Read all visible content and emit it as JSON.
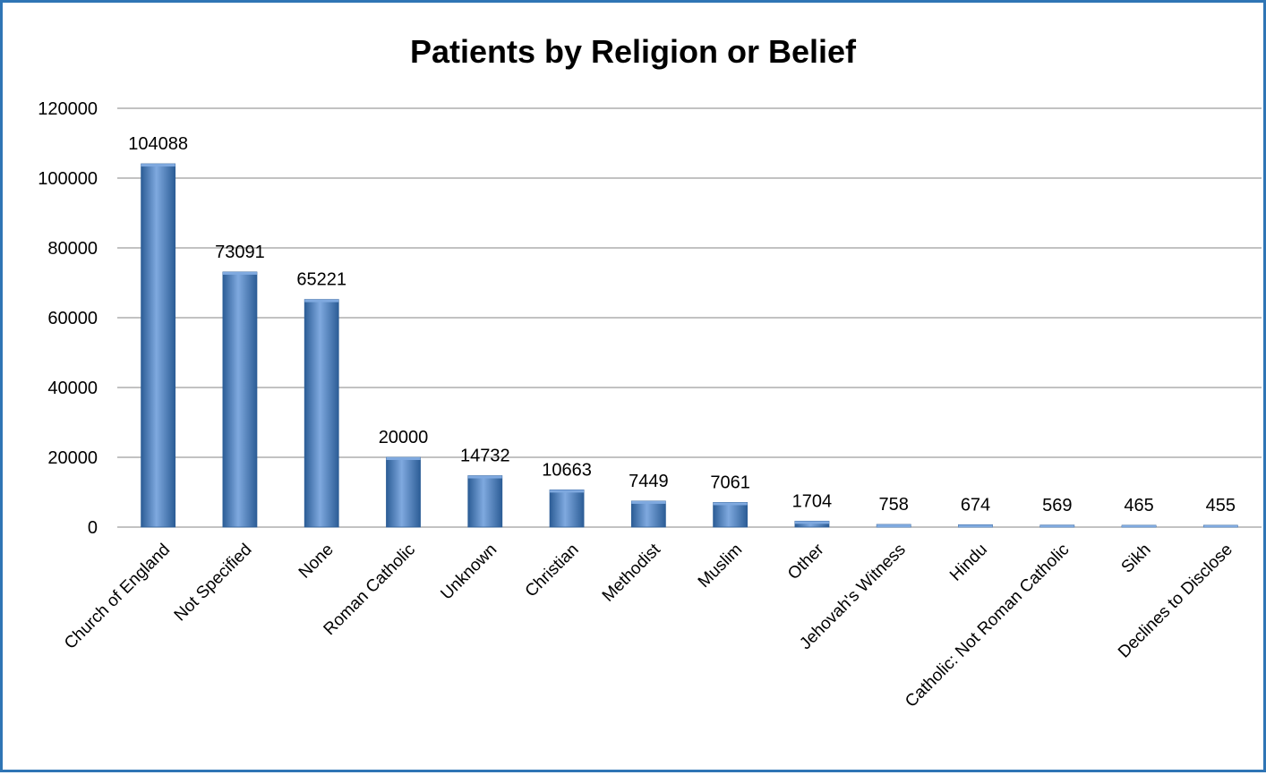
{
  "chart_data": {
    "type": "bar",
    "title": "Patients by Religion or Belief",
    "xlabel": "",
    "ylabel": "",
    "categories": [
      "Church of England",
      "Not Specified",
      "None",
      "Roman Catholic",
      "Unknown",
      "Christian",
      "Methodist",
      "Muslim",
      "Other",
      "Jehovah's Witness",
      "Hindu",
      "Catholic: Not Roman Catholic",
      "Sikh",
      "Declines to Disclose"
    ],
    "values": [
      104088,
      73091,
      65221,
      20000,
      14732,
      10663,
      7449,
      7061,
      1704,
      758,
      674,
      569,
      465,
      455
    ],
    "data_labels": [
      "104088",
      "73091",
      "65221",
      "20000",
      "14732",
      "10663",
      "7449",
      "7061",
      "1704",
      "758",
      "674",
      "569",
      "465",
      "455"
    ],
    "ylim": [
      0,
      120000
    ],
    "yticks": [
      0,
      20000,
      40000,
      60000,
      80000,
      100000,
      120000
    ],
    "ytick_labels": [
      "0",
      "20000",
      "40000",
      "60000",
      "80000",
      "100000",
      "120000"
    ],
    "grid": true,
    "legend": "none",
    "colors": {
      "bar": "#4f81bd",
      "bar_light": "#7fa9df",
      "bar_dark": "#2c5d96",
      "grid": "#868686",
      "frame": "#2f75b5"
    }
  }
}
